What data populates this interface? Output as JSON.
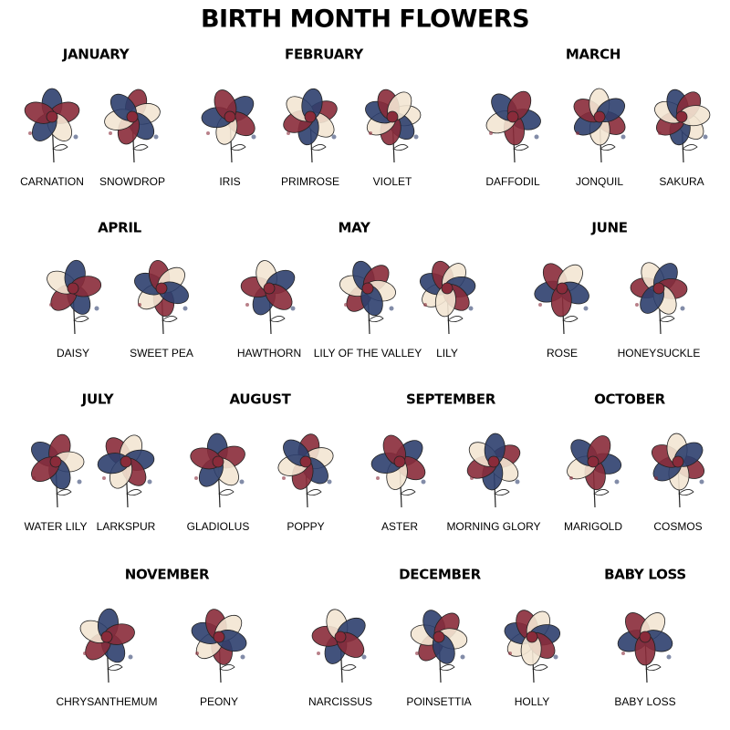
{
  "title": "BIRTH MONTH FLOWERS",
  "groups": [
    {
      "month": "JANUARY",
      "flowers": [
        "CARNATION",
        "SNOWDROP"
      ]
    },
    {
      "month": "FEBRUARY",
      "flowers": [
        "IRIS",
        "PRIMROSE",
        "VIOLET"
      ]
    },
    {
      "month": "MARCH",
      "flowers": [
        "DAFFODIL",
        "JONQUIL",
        "SAKURA"
      ]
    },
    {
      "month": "APRIL",
      "flowers": [
        "DAISY",
        "SWEET PEA"
      ]
    },
    {
      "month": "MAY",
      "flowers": [
        "HAWTHORN",
        "LILY OF THE VALLEY",
        "LILY"
      ]
    },
    {
      "month": "JUNE",
      "flowers": [
        "ROSE",
        "HONEYSUCKLE"
      ]
    },
    {
      "month": "JULY",
      "flowers": [
        "WATER LILY",
        "LARKSPUR"
      ]
    },
    {
      "month": "AUGUST",
      "flowers": [
        "GLADIOLUS",
        "POPPY"
      ]
    },
    {
      "month": "SEPTEMBER",
      "flowers": [
        "ASTER",
        "MORNING GLORY"
      ]
    },
    {
      "month": "OCTOBER",
      "flowers": [
        "MARIGOLD",
        "COSMOS"
      ]
    },
    {
      "month": "NOVEMBER",
      "flowers": [
        "CHRYSANTHEMUM",
        "PEONY"
      ]
    },
    {
      "month": "DECEMBER",
      "flowers": [
        "NARCISSUS",
        "POINSETTIA",
        "HOLLY"
      ]
    },
    {
      "month": "BABY LOSS",
      "flowers": [
        "BABY LOSS"
      ]
    }
  ]
}
